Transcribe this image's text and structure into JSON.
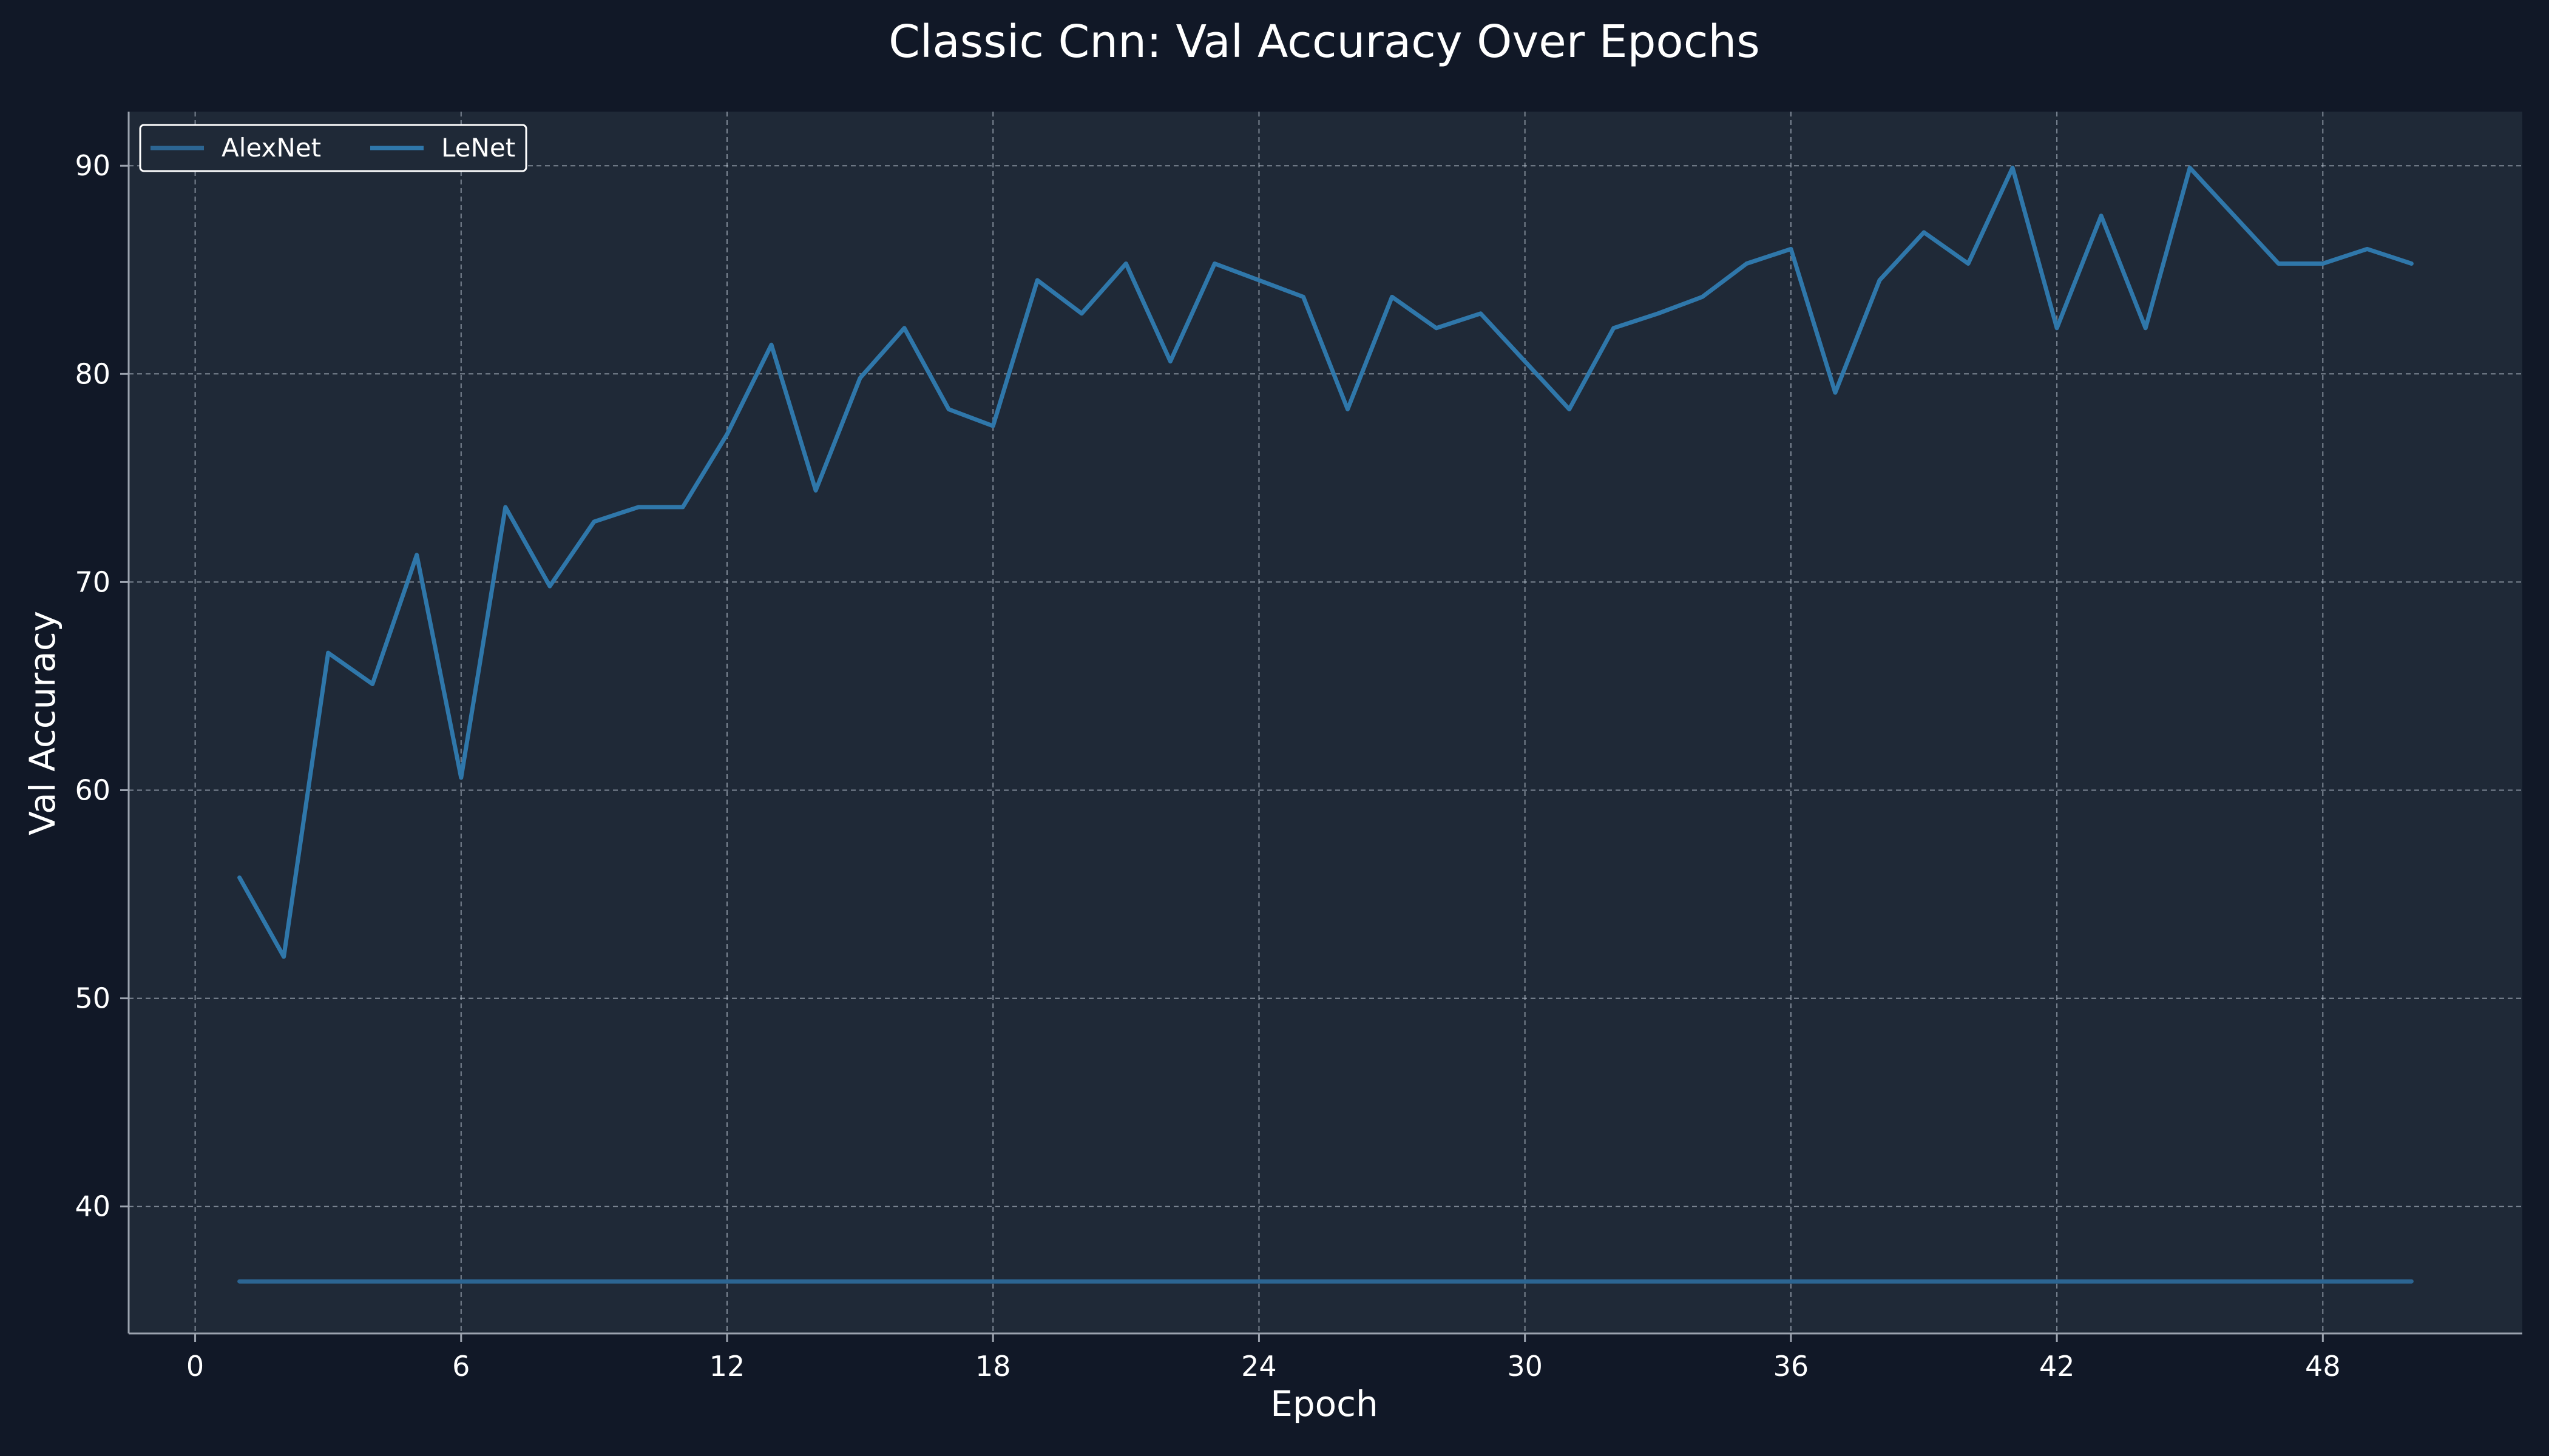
{
  "colors": {
    "page_background": "#111827",
    "plot_background": "#1f2937",
    "grid": "#cbd5e1",
    "axis": "#9ca3af",
    "text": "#ffffff",
    "alexnet_line": "#2c6592",
    "lenet_line": "#2f77aa",
    "legend_background": "#1f2937",
    "legend_border": "#ffffff"
  },
  "chart_data": {
    "type": "line",
    "title": "Classic Cnn: Val Accuracy Over Epochs",
    "xlabel": "Epoch",
    "ylabel": "Val Accuracy",
    "xlim": [
      -1.5,
      52.5
    ],
    "ylim": [
      33.9,
      92.6
    ],
    "xticks": [
      0,
      6,
      12,
      18,
      24,
      30,
      36,
      42,
      48
    ],
    "yticks": [
      40,
      50,
      60,
      70,
      80,
      90
    ],
    "grid": true,
    "legend_position": "upper-left",
    "x": [
      1,
      2,
      3,
      4,
      5,
      6,
      7,
      8,
      9,
      10,
      11,
      12,
      13,
      14,
      15,
      16,
      17,
      18,
      19,
      20,
      21,
      22,
      23,
      24,
      25,
      26,
      27,
      28,
      29,
      30,
      31,
      32,
      33,
      34,
      35,
      36,
      37,
      38,
      39,
      40,
      41,
      42,
      43,
      44,
      45,
      46,
      47,
      48,
      49,
      50
    ],
    "series": [
      {
        "name": "AlexNet",
        "color": "#2c6592",
        "values": [
          36.4,
          36.4,
          36.4,
          36.4,
          36.4,
          36.4,
          36.4,
          36.4,
          36.4,
          36.4,
          36.4,
          36.4,
          36.4,
          36.4,
          36.4,
          36.4,
          36.4,
          36.4,
          36.4,
          36.4,
          36.4,
          36.4,
          36.4,
          36.4,
          36.4,
          36.4,
          36.4,
          36.4,
          36.4,
          36.4,
          36.4,
          36.4,
          36.4,
          36.4,
          36.4,
          36.4,
          36.4,
          36.4,
          36.4,
          36.4,
          36.4,
          36.4,
          36.4,
          36.4,
          36.4,
          36.4,
          36.4,
          36.4,
          36.4,
          36.4
        ]
      },
      {
        "name": "LeNet",
        "color": "#2f77aa",
        "values": [
          55.8,
          52.0,
          66.6,
          65.1,
          71.3,
          60.6,
          73.6,
          69.8,
          72.9,
          73.6,
          73.6,
          77.1,
          81.4,
          74.4,
          79.8,
          82.2,
          78.3,
          77.5,
          84.5,
          82.9,
          85.3,
          80.6,
          85.3,
          84.5,
          83.7,
          78.3,
          83.7,
          82.2,
          82.9,
          80.6,
          78.3,
          82.2,
          82.9,
          83.7,
          85.3,
          86.0,
          79.1,
          84.5,
          86.8,
          85.3,
          89.9,
          82.2,
          87.6,
          82.2,
          89.9,
          87.6,
          85.3,
          85.3,
          86.0,
          85.3
        ]
      }
    ]
  }
}
